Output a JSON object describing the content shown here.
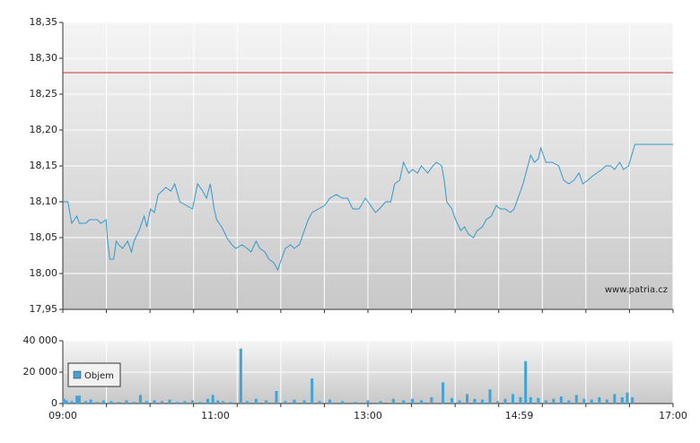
{
  "chart_data": [
    {
      "type": "line",
      "color": "#3399cc",
      "grid": true,
      "xlim": [
        540,
        1020
      ],
      "xgrid_divisions": 14,
      "ylim": [
        17.95,
        18.35
      ],
      "yticks": [
        {
          "value": 17.95,
          "label": "17,95"
        },
        {
          "value": 18.0,
          "label": "18,00"
        },
        {
          "value": 18.05,
          "label": "18,05"
        },
        {
          "value": 18.1,
          "label": "18,10"
        },
        {
          "value": 18.15,
          "label": "18,15"
        },
        {
          "value": 18.2,
          "label": "18,20"
        },
        {
          "value": 18.25,
          "label": "18,25"
        },
        {
          "value": 18.3,
          "label": "18,30"
        },
        {
          "value": 18.35,
          "label": "18,35"
        }
      ],
      "reference_line": 18.28,
      "reference_color": "#cc3333",
      "annotation": "www.patria.cz",
      "x": [
        540,
        544,
        547,
        551,
        553,
        558,
        561,
        567,
        570,
        574,
        575,
        577,
        580,
        582,
        584,
        587,
        591,
        594,
        596,
        600,
        604,
        606,
        609,
        612,
        615,
        618,
        621,
        625,
        628,
        632,
        637,
        642,
        646,
        650,
        653,
        656,
        659,
        661,
        665,
        669,
        673,
        676,
        681,
        685,
        688,
        692,
        695,
        699,
        702,
        706,
        709,
        712,
        715,
        719,
        722,
        726,
        729,
        733,
        736,
        741,
        746,
        750,
        755,
        760,
        764,
        768,
        773,
        778,
        782,
        786,
        789,
        794,
        798,
        801,
        805,
        808,
        812,
        815,
        819,
        822,
        827,
        831,
        834,
        838,
        840,
        842,
        846,
        849,
        853,
        856,
        859,
        863,
        866,
        870,
        873,
        877,
        881,
        884,
        888,
        892,
        895,
        899,
        902,
        905,
        908,
        911,
        914,
        916,
        920,
        925,
        930,
        934,
        938,
        942,
        946,
        949,
        953,
        956,
        960,
        964,
        967,
        971,
        974,
        978,
        981,
        985,
        990,
        1020
      ],
      "values": [
        18.1,
        18.1,
        18.07,
        18.08,
        18.07,
        18.07,
        18.075,
        18.075,
        18.07,
        18.075,
        18.05,
        18.02,
        18.02,
        18.045,
        18.04,
        18.035,
        18.045,
        18.03,
        18.045,
        18.06,
        18.08,
        18.065,
        18.09,
        18.085,
        18.11,
        18.115,
        18.12,
        18.115,
        18.125,
        18.1,
        18.095,
        18.09,
        18.125,
        18.115,
        18.105,
        18.125,
        18.09,
        18.075,
        18.065,
        18.05,
        18.04,
        18.035,
        18.04,
        18.035,
        18.03,
        18.045,
        18.035,
        18.03,
        18.02,
        18.015,
        18.005,
        18.02,
        18.035,
        18.04,
        18.035,
        18.04,
        18.055,
        18.075,
        18.085,
        18.09,
        18.095,
        18.105,
        18.11,
        18.105,
        18.105,
        18.09,
        18.09,
        18.105,
        18.095,
        18.085,
        18.09,
        18.1,
        18.1,
        18.125,
        18.13,
        18.155,
        18.14,
        18.145,
        18.14,
        18.15,
        18.14,
        18.15,
        18.155,
        18.15,
        18.13,
        18.1,
        18.09,
        18.075,
        18.06,
        18.065,
        18.055,
        18.05,
        18.06,
        18.065,
        18.075,
        18.08,
        18.095,
        18.09,
        18.09,
        18.085,
        18.09,
        18.11,
        18.125,
        18.145,
        18.165,
        18.155,
        18.16,
        18.175,
        18.155,
        18.155,
        18.15,
        18.13,
        18.125,
        18.13,
        18.14,
        18.125,
        18.13,
        18.135,
        18.14,
        18.145,
        18.15,
        18.15,
        18.145,
        18.155,
        18.145,
        18.15,
        18.18,
        18.18
      ]
    },
    {
      "type": "bar",
      "grid": true,
      "xlim": [
        540,
        1020
      ],
      "xgrid_divisions": 14,
      "xticks": [
        {
          "value": 540,
          "label": "09:00"
        },
        {
          "value": 660,
          "label": "11:00"
        },
        {
          "value": 780,
          "label": "13:00"
        },
        {
          "value": 899,
          "label": "14:59"
        },
        {
          "value": 1020,
          "label": "17:00"
        }
      ],
      "ylim": [
        0,
        40000
      ],
      "yticks": [
        0,
        {
          "value": 20000,
          "label": "20 000"
        },
        {
          "value": 40000,
          "label": "40 000"
        }
      ],
      "x": [
        541,
        543,
        547,
        551,
        553,
        558,
        562,
        567,
        572,
        578,
        584,
        590,
        596,
        601,
        606,
        612,
        618,
        624,
        630,
        636,
        642,
        648,
        654,
        658,
        662,
        666,
        672,
        680,
        685,
        692,
        700,
        708,
        715,
        722,
        730,
        736,
        742,
        750,
        760,
        770,
        780,
        790,
        800,
        808,
        815,
        822,
        830,
        839,
        846,
        852,
        858,
        864,
        870,
        876,
        882,
        888,
        894,
        900,
        904,
        908,
        914,
        920,
        926,
        932,
        938,
        944,
        950,
        956,
        962,
        968,
        974,
        980,
        984,
        988
      ],
      "series": [
        {
          "name": "Objem",
          "color": "#44a3d5",
          "values": [
            3000,
            2000,
            1500,
            5000,
            5000,
            1500,
            2500,
            1000,
            2000,
            1500,
            1000,
            2000,
            1000,
            5500,
            1500,
            2000,
            1500,
            2500,
            1000,
            1500,
            2000,
            1000,
            3000,
            5500,
            2000,
            1500,
            1000,
            35000,
            1500,
            3000,
            2000,
            8000,
            1500,
            2500,
            2000,
            16000,
            1500,
            2500,
            1500,
            1000,
            2000,
            1500,
            3000,
            2000,
            3000,
            2000,
            4000,
            13500,
            3500,
            2000,
            6000,
            3000,
            2500,
            9000,
            1500,
            3000,
            6000,
            4000,
            27000,
            4000,
            3500,
            2000,
            3000,
            4500,
            2000,
            5500,
            3000,
            2500,
            4000,
            2500,
            6000,
            4000,
            7000,
            4000
          ]
        }
      ]
    }
  ]
}
